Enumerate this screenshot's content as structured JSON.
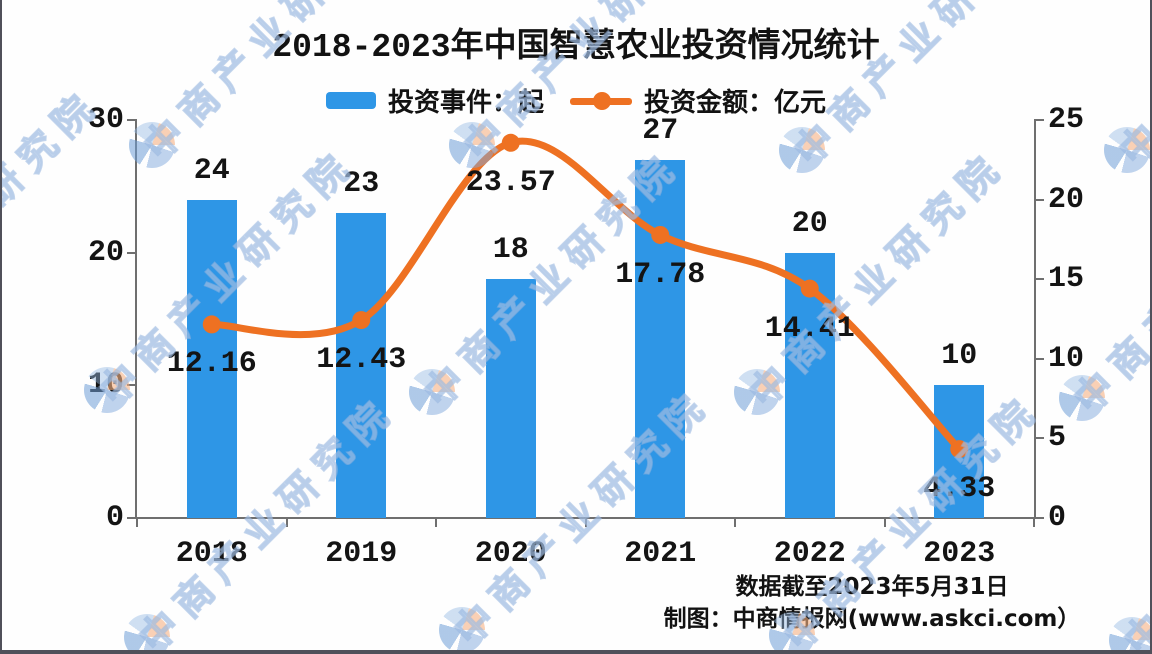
{
  "title": "2018-2023年中国智慧农业投资情况统计",
  "legend": [
    {
      "label": "投资事件：起",
      "type": "bar",
      "color": "#2E96E6"
    },
    {
      "label": "投资金额：亿元",
      "type": "line",
      "color": "#EE7122"
    }
  ],
  "footer": {
    "line1": "数据截至2023年5月31日",
    "line2": "制图：中商情报网(www.askci.com）"
  },
  "watermark": {
    "text": "中商产业研究院",
    "logo": "askci-logo-icon"
  },
  "colors": {
    "bar": "#2E96E6",
    "line": "#EE7122",
    "axis": "#6f6f6f",
    "text": "#141414",
    "watermark_blue": "#9cb8de",
    "watermark_peach": "#f6b284"
  },
  "chart_data": {
    "type": "bar",
    "title": "2018-2023年中国智慧农业投资情况统计",
    "categories": [
      "2018",
      "2019",
      "2020",
      "2021",
      "2022",
      "2023"
    ],
    "series": [
      {
        "name": "投资事件：起",
        "type": "bar",
        "axis": "left",
        "color": "#2E96E6",
        "values": [
          24,
          23,
          18,
          27,
          20,
          10
        ]
      },
      {
        "name": "投资金额：亿元",
        "type": "line",
        "axis": "right",
        "color": "#EE7122",
        "values": [
          12.16,
          12.43,
          23.57,
          17.78,
          14.41,
          4.33
        ]
      }
    ],
    "left_axis": {
      "label": "",
      "min": 0,
      "max": 30,
      "ticks": [
        0,
        10,
        20,
        30
      ]
    },
    "right_axis": {
      "label": "",
      "min": 0,
      "max": 25,
      "ticks": [
        0,
        5,
        10,
        15,
        20,
        25
      ]
    },
    "xlabel": "",
    "ylabel": "",
    "grid": false,
    "legend_position": "top",
    "notes": [
      "数据截至2023年5月31日",
      "制图：中商情报网(www.askci.com）"
    ]
  }
}
